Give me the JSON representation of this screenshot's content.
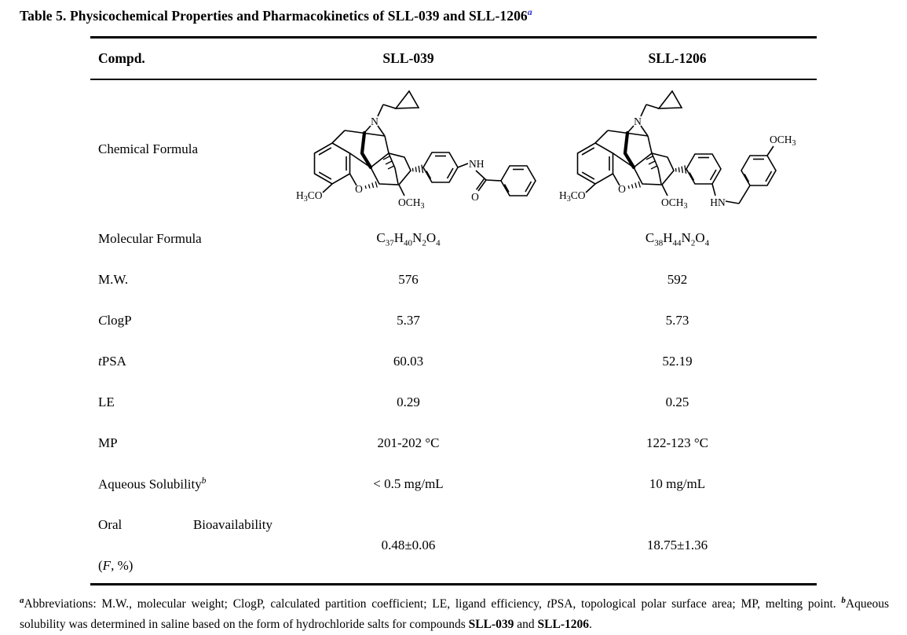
{
  "title": {
    "text": "Table 5. Physicochemical Properties and Pharmacokinetics of SLL-039 and SLL-1206",
    "superscript": "a",
    "superscript_color": "#3333cc"
  },
  "table": {
    "header": {
      "compound": "Compd.",
      "sll039": "SLL-039",
      "sll1206": "SLL-1206"
    },
    "chemical_formula_label": "Chemical Formula",
    "rows": [
      {
        "label": "Molecular Formula",
        "sll039": "C37H40N2O4",
        "sll1206": "C38H44N2O4"
      },
      {
        "label": "M.W.",
        "sll039": "576",
        "sll1206": "592"
      },
      {
        "label_italic": "C",
        "label_rest": "logP",
        "sll039": "5.37",
        "sll1206": "5.73"
      },
      {
        "label_italic": "t",
        "label_rest": "PSA",
        "sll039": "60.03",
        "sll1206": "52.19"
      },
      {
        "label": "LE",
        "sll039": "0.29",
        "sll1206": "0.25"
      },
      {
        "label": "MP",
        "sll039": "201-202 °C",
        "sll1206": "122-123 °C"
      },
      {
        "label": "Aqueous Solubility",
        "label_superscript": "b",
        "sll039": "< 0.5 mg/mL",
        "sll1206": "10 mg/mL"
      },
      {
        "label_word1": "Oral",
        "label_word2": "Bioavailability",
        "label_line2_prefix": "(",
        "label_line2_italic": "F",
        "label_line2_suffix": ", %)",
        "sll039": "0.48±0.06",
        "sll1206": "18.75±1.36"
      }
    ]
  },
  "structures": {
    "sll039": {
      "name": "SLL-039",
      "labels": {
        "amine_n": "N",
        "aromatic_methoxy_h": "H",
        "aromatic_methoxy_sub": "3",
        "aromatic_methoxy_rest": "CO",
        "furan_o": "O",
        "c6_methoxy_main": "OCH",
        "c6_methoxy_sub": "3",
        "amide_nh": "NH",
        "carbonyl_o": "O"
      }
    },
    "sll1206": {
      "name": "SLL-1206",
      "labels": {
        "amine_n": "N",
        "aromatic_methoxy_h": "H",
        "aromatic_methoxy_sub": "3",
        "aromatic_methoxy_rest": "CO",
        "furan_o": "O",
        "c6_methoxy_main": "OCH",
        "c6_methoxy_sub": "3",
        "benzylamine_hn": "HN",
        "aryl_methoxy_main": "OCH",
        "aryl_methoxy_sub": "3"
      }
    }
  },
  "footnote": {
    "segments": [
      {
        "text": "a",
        "style": "sup"
      },
      {
        "text": "Abbreviations: M.W., molecular weight; ClogP, calculated partition coefficient; LE, ligand efficiency, ",
        "style": "normal"
      },
      {
        "text": "t",
        "style": "italic"
      },
      {
        "text": "PSA, topological polar surface area; MP, melting point. ",
        "style": "normal"
      },
      {
        "text": "b",
        "style": "sup"
      },
      {
        "text": "Aqueous solubility was determined in saline based on the form of hydrochloride salts for compounds ",
        "style": "normal"
      },
      {
        "text": "SLL-039",
        "style": "bold"
      },
      {
        "text": " and ",
        "style": "normal"
      },
      {
        "text": "SLL-1206",
        "style": "bold"
      },
      {
        "text": ".",
        "style": "normal"
      }
    ]
  }
}
